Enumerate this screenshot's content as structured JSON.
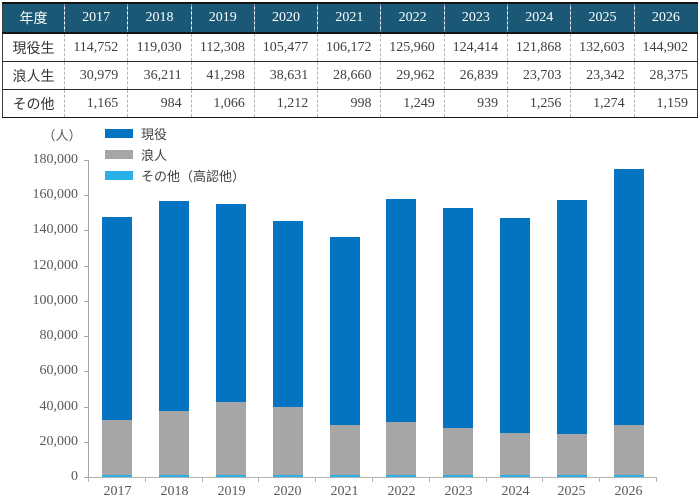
{
  "table": {
    "corner_label": "年度",
    "row_labels": [
      "現役生",
      "浪人生",
      "その他"
    ]
  },
  "chart": {
    "unit_label": "（人）",
    "legend": [
      {
        "label": "現役",
        "color": "#0473c2"
      },
      {
        "label": "浪人",
        "color": "#a6a6a6"
      },
      {
        "label": "その他（高認他）",
        "color": "#29b0e6"
      }
    ]
  },
  "chart_data": {
    "type": "bar",
    "stacked": true,
    "title": "",
    "xlabel": "",
    "ylabel": "（人）",
    "categories": [
      "2017",
      "2018",
      "2019",
      "2020",
      "2021",
      "2022",
      "2023",
      "2024",
      "2025",
      "2026"
    ],
    "series": [
      {
        "name": "現役",
        "color": "#0473c2",
        "values": [
          114752,
          119030,
          112308,
          105477,
          106172,
          125960,
          124414,
          121868,
          132603,
          144902
        ]
      },
      {
        "name": "浪人",
        "color": "#a6a6a6",
        "values": [
          30979,
          36211,
          41298,
          38631,
          28660,
          29962,
          26839,
          23703,
          23342,
          28375
        ]
      },
      {
        "name": "その他（高認他）",
        "color": "#29b0e6",
        "values": [
          1165,
          984,
          1066,
          1212,
          998,
          1249,
          939,
          1256,
          1274,
          1159
        ]
      }
    ],
    "stack_order_bottom_to_top": [
      "その他（高認他）",
      "浪人",
      "現役"
    ],
    "ylim": [
      0,
      180000
    ],
    "ytick_step": 20000,
    "ytick_labels": [
      "0",
      "20,000",
      "40,000",
      "60,000",
      "80,000",
      "100,000",
      "120,000",
      "140,000",
      "160,000",
      "180,000"
    ],
    "grid": false,
    "legend_position": "top-left"
  },
  "colors": {
    "table_header_bg": "#1a5876",
    "table_header_text": "#ffffff",
    "axis_line": "#a6a6a6",
    "axis_text": "#595959"
  }
}
